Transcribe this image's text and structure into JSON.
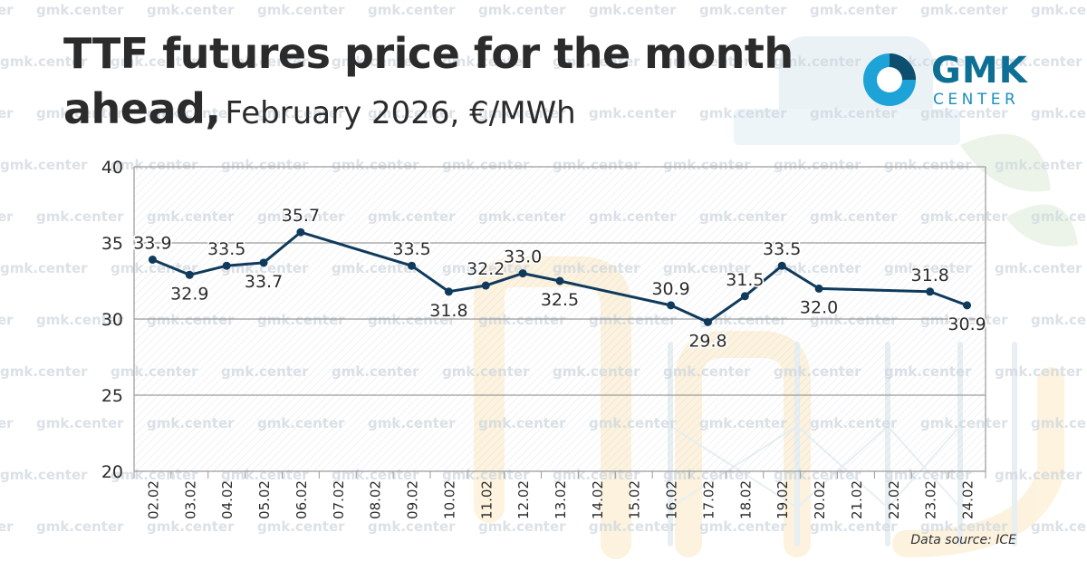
{
  "header": {
    "title_bold": "TTF futures price for the month ahead,",
    "title_sub": "February 2026, €/MWh"
  },
  "logo": {
    "name": "GMK",
    "sub": "CENTER"
  },
  "watermark": "gmk.center",
  "source": "Data source: ICE",
  "colors": {
    "line": "#0f3a5c",
    "grid": "#9a9a9a",
    "text": "#2b2b2b",
    "brand": "#0e6f95"
  },
  "chart_data": {
    "type": "line",
    "title": "TTF futures price for the month ahead, February 2026, €/MWh",
    "xlabel": "",
    "ylabel": "",
    "ylim": [
      20,
      40
    ],
    "yticks": [
      20,
      25,
      30,
      35,
      40
    ],
    "grid": true,
    "categories": [
      "02.02",
      "03.02",
      "04.02",
      "05.02",
      "06.02",
      "07.02",
      "08.02",
      "09.02",
      "10.02",
      "11.02",
      "12.02",
      "13.02",
      "14.02",
      "15.02",
      "16.02",
      "17.02",
      "18.02",
      "19.02",
      "20.02",
      "21.02",
      "22.02",
      "23.02",
      "24.02"
    ],
    "series": [
      {
        "name": "TTF",
        "values": [
          33.9,
          32.9,
          33.5,
          33.7,
          35.7,
          null,
          null,
          33.5,
          31.8,
          32.2,
          33.0,
          32.5,
          null,
          null,
          30.9,
          29.8,
          31.5,
          33.5,
          32.0,
          null,
          null,
          31.8,
          30.9
        ],
        "labels": [
          "33.9",
          "32.9",
          "33.5",
          "33.7",
          "35.7",
          "",
          "",
          "33.5",
          "31.8",
          "32.2",
          "33.0",
          "32.5",
          "",
          "",
          "30.9",
          "29.8",
          "31.5",
          "33.5",
          "32.0",
          "",
          "",
          "31.8",
          "30.9"
        ],
        "label_pos": [
          "above",
          "below",
          "above",
          "below",
          "above",
          "",
          "",
          "above",
          "below",
          "above",
          "above",
          "below",
          "",
          "",
          "above",
          "below",
          "above",
          "above",
          "below",
          "",
          "",
          "above",
          "below"
        ]
      }
    ]
  }
}
